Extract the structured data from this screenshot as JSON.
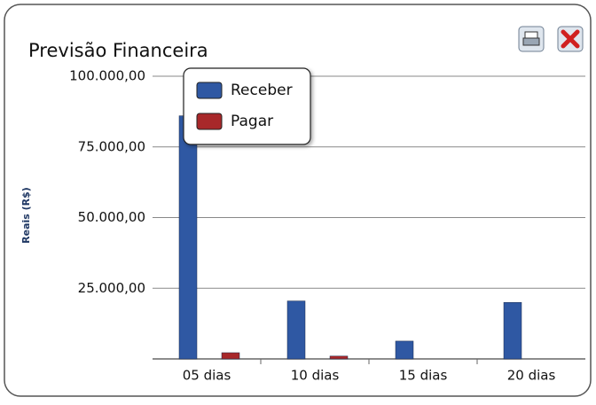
{
  "chart_data": {
    "type": "bar",
    "title": "Previsão Financeira",
    "y_label": "Reais (R$)",
    "categories": [
      "05 dias",
      "10 dias",
      "15 dias",
      "20 dias"
    ],
    "series": [
      {
        "name": "Receber",
        "color": "#2f58a3",
        "values": [
          86000,
          20500,
          6300,
          20000
        ]
      },
      {
        "name": "Pagar",
        "color": "#a8282a",
        "values": [
          2200,
          1000,
          0,
          0
        ]
      }
    ],
    "ylim": [
      0,
      100000
    ],
    "yticks": [
      {
        "value": 25000,
        "label": "25.000,00"
      },
      {
        "value": 50000,
        "label": "50.000,00"
      },
      {
        "value": 75000,
        "label": "75.000,00"
      },
      {
        "value": 100000,
        "label": "100.000,00"
      }
    ],
    "grid": true,
    "legend": "upper left"
  }
}
